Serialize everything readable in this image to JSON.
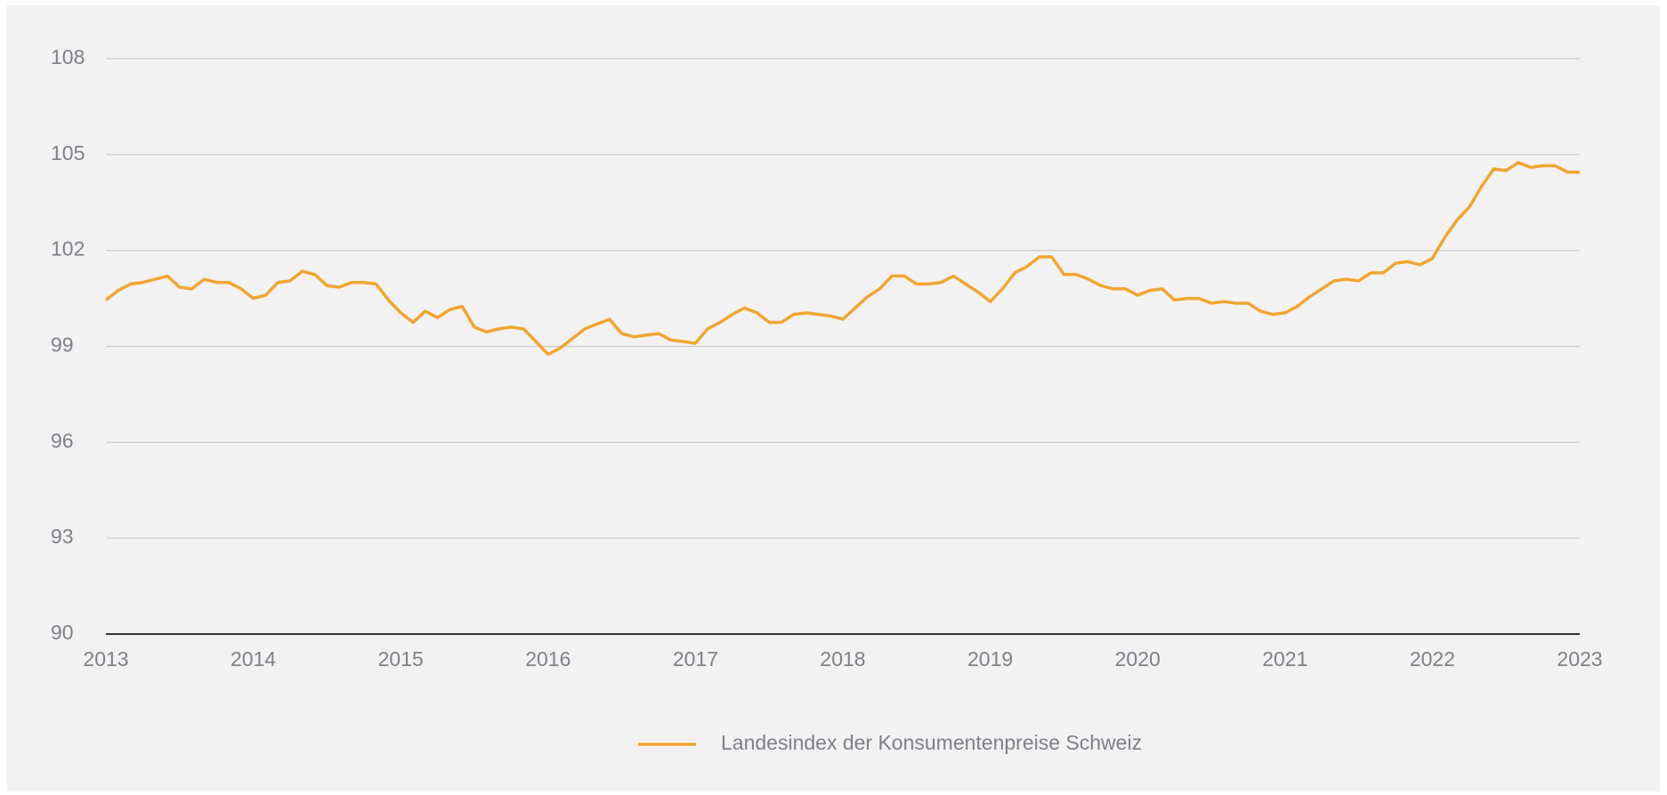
{
  "chart_data": {
    "type": "line",
    "x": [
      2013,
      2013.083,
      2013.167,
      2013.25,
      2013.333,
      2013.417,
      2013.5,
      2013.583,
      2013.667,
      2013.75,
      2013.833,
      2013.917,
      2014,
      2014.083,
      2014.167,
      2014.25,
      2014.333,
      2014.417,
      2014.5,
      2014.583,
      2014.667,
      2014.75,
      2014.833,
      2014.917,
      2015,
      2015.083,
      2015.167,
      2015.25,
      2015.333,
      2015.417,
      2015.5,
      2015.583,
      2015.667,
      2015.75,
      2015.833,
      2015.917,
      2016,
      2016.083,
      2016.167,
      2016.25,
      2016.333,
      2016.417,
      2016.5,
      2016.583,
      2016.667,
      2016.75,
      2016.833,
      2016.917,
      2017,
      2017.083,
      2017.167,
      2017.25,
      2017.333,
      2017.417,
      2017.5,
      2017.583,
      2017.667,
      2017.75,
      2017.833,
      2017.917,
      2018,
      2018.083,
      2018.167,
      2018.25,
      2018.333,
      2018.417,
      2018.5,
      2018.583,
      2018.667,
      2018.75,
      2018.833,
      2018.917,
      2019,
      2019.083,
      2019.167,
      2019.25,
      2019.333,
      2019.417,
      2019.5,
      2019.583,
      2019.667,
      2019.75,
      2019.833,
      2019.917,
      2020,
      2020.083,
      2020.167,
      2020.25,
      2020.333,
      2020.417,
      2020.5,
      2020.583,
      2020.667,
      2020.75,
      2020.833,
      2020.917,
      2021,
      2021.083,
      2021.167,
      2021.25,
      2021.333,
      2021.417,
      2021.5,
      2021.583,
      2021.667,
      2021.75,
      2021.833,
      2021.917,
      2022,
      2022.083,
      2022.167,
      2022.25,
      2022.333,
      2022.417,
      2022.5,
      2022.583,
      2022.667,
      2022.75,
      2022.833,
      2022.917,
      2023
    ],
    "series": [
      {
        "name": "Landesindex der Konsumentenpreise Schweiz",
        "color": "#f2a530",
        "values": [
          100.45,
          100.75,
          100.95,
          101.0,
          101.1,
          101.2,
          100.85,
          100.8,
          101.1,
          101.0,
          101.0,
          100.8,
          100.5,
          100.6,
          101.0,
          101.05,
          101.35,
          101.25,
          100.9,
          100.85,
          101.0,
          101.0,
          100.95,
          100.45,
          100.05,
          99.75,
          100.1,
          99.9,
          100.15,
          100.25,
          99.6,
          99.45,
          99.55,
          99.6,
          99.55,
          99.15,
          98.75,
          98.95,
          99.25,
          99.55,
          99.7,
          99.85,
          99.4,
          99.3,
          99.35,
          99.4,
          99.2,
          99.15,
          99.1,
          99.55,
          99.75,
          100.0,
          100.2,
          100.05,
          99.75,
          99.75,
          100.0,
          100.05,
          100.0,
          99.95,
          99.85,
          100.2,
          100.55,
          100.8,
          101.2,
          101.2,
          100.95,
          100.95,
          101.0,
          101.2,
          100.95,
          100.7,
          100.4,
          100.8,
          101.3,
          101.5,
          101.8,
          101.8,
          101.25,
          101.25,
          101.1,
          100.9,
          100.8,
          100.8,
          100.6,
          100.75,
          100.8,
          100.45,
          100.5,
          100.5,
          100.35,
          100.4,
          100.35,
          100.35,
          100.1,
          100.0,
          100.05,
          100.25,
          100.55,
          100.8,
          101.05,
          101.1,
          101.05,
          101.3,
          101.3,
          101.6,
          101.65,
          101.55,
          101.75,
          102.4,
          102.95,
          103.35,
          104.0,
          104.55,
          104.5,
          104.75,
          104.6,
          104.65,
          104.65,
          104.45,
          104.45
        ]
      }
    ],
    "xlim": [
      2013,
      2023
    ],
    "xticks": [
      2013,
      2014,
      2015,
      2016,
      2017,
      2018,
      2019,
      2020,
      2021,
      2022,
      2023
    ],
    "ylim": [
      90,
      108
    ],
    "yticks": [
      90,
      93,
      96,
      99,
      102,
      105,
      108
    ],
    "grid": true,
    "legend": "bottom"
  }
}
